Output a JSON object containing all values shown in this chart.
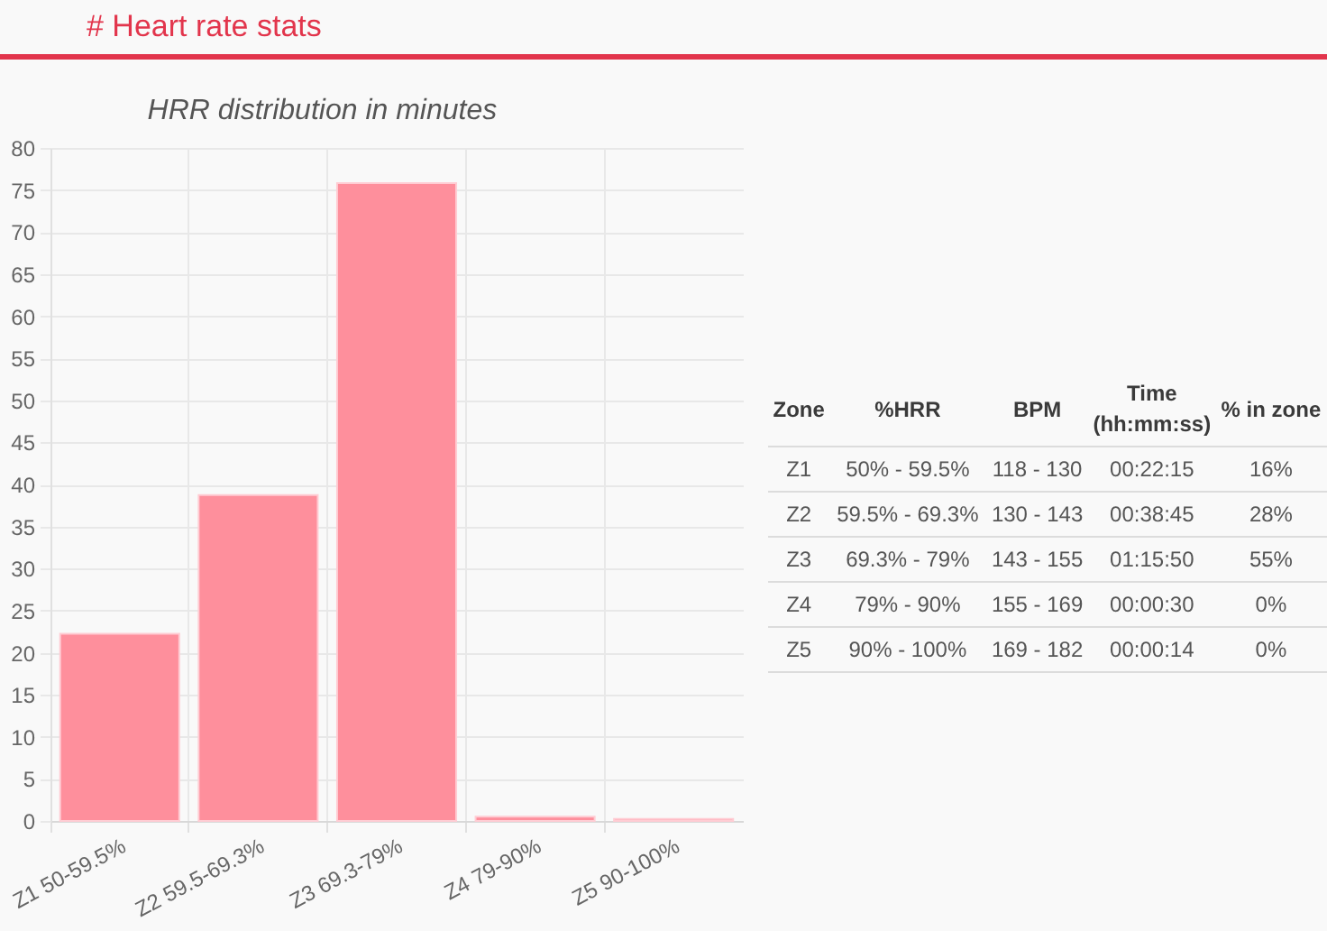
{
  "chart_data": [
    {
      "type": "bar",
      "title": "# Heart rate stats",
      "subtitle": "HRR distribution in minutes",
      "categories": [
        "Z1 50-59.5%",
        "Z2 59.5-69.3%",
        "Z3 69.3-79%",
        "Z4 79-90%",
        "Z5 90-100%"
      ],
      "values": [
        22.25,
        38.75,
        75.83,
        0.5,
        0.23
      ],
      "color": "#fe8f9c",
      "ylim": [
        0,
        80
      ],
      "yticks": [
        0,
        5,
        10,
        15,
        20,
        25,
        30,
        35,
        40,
        45,
        50,
        55,
        60,
        65,
        70,
        75,
        80
      ],
      "grid": true
    },
    {
      "type": "other",
      "annotations": [
        "Zone",
        "%HRR",
        "BPM",
        "Time (hh:mm:ss)",
        "% in zone",
        "Z1",
        "50% - 59.5%",
        "118 - 130",
        "00:22:15",
        "16%",
        "Z2",
        "59.5% - 69.3%",
        "130 - 143",
        "00:38:45",
        "28%",
        "Z3",
        "69.3% - 79%",
        "143 - 155",
        "01:15:50",
        "55%",
        "Z4",
        "79% - 90%",
        "155 - 169",
        "00:00:30",
        "0%",
        "Z5",
        "90% - 100%",
        "169 - 182",
        "00:00:14",
        "0%"
      ]
    }
  ]
}
